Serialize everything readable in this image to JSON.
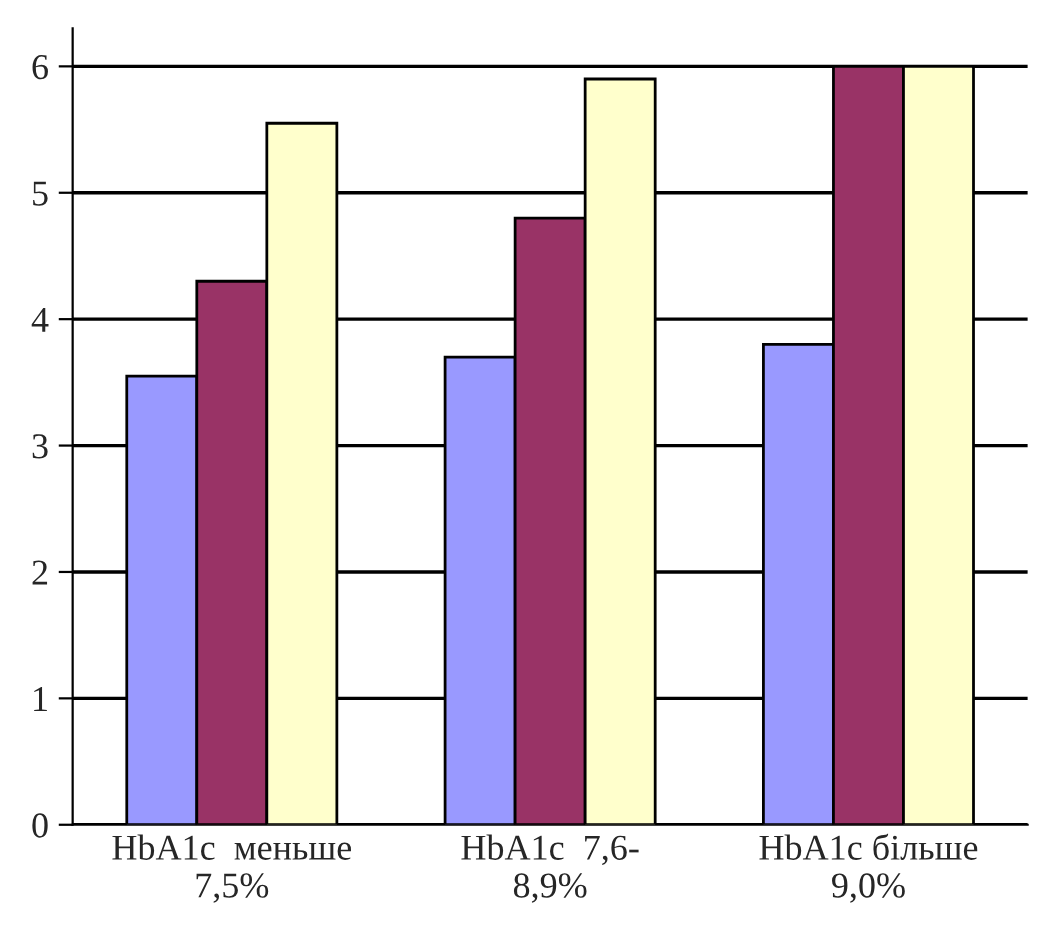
{
  "chart_data": {
    "type": "bar",
    "categories": [
      "HbA1c  меньше\n7,5%",
      "HbA1c  7,6-\n8,9%",
      "HbA1c більше\n9,0%"
    ],
    "series": [
      {
        "color": "#9999ff",
        "values": [
          3.55,
          3.7,
          3.8
        ]
      },
      {
        "color": "#993366",
        "values": [
          4.3,
          4.8,
          6.0
        ]
      },
      {
        "color": "#ffffcc",
        "values": [
          5.55,
          5.9,
          6.0
        ]
      }
    ],
    "ylim": [
      0,
      6.3
    ],
    "yticks": [
      0,
      1,
      2,
      3,
      4,
      5,
      6
    ],
    "grid": "y"
  }
}
